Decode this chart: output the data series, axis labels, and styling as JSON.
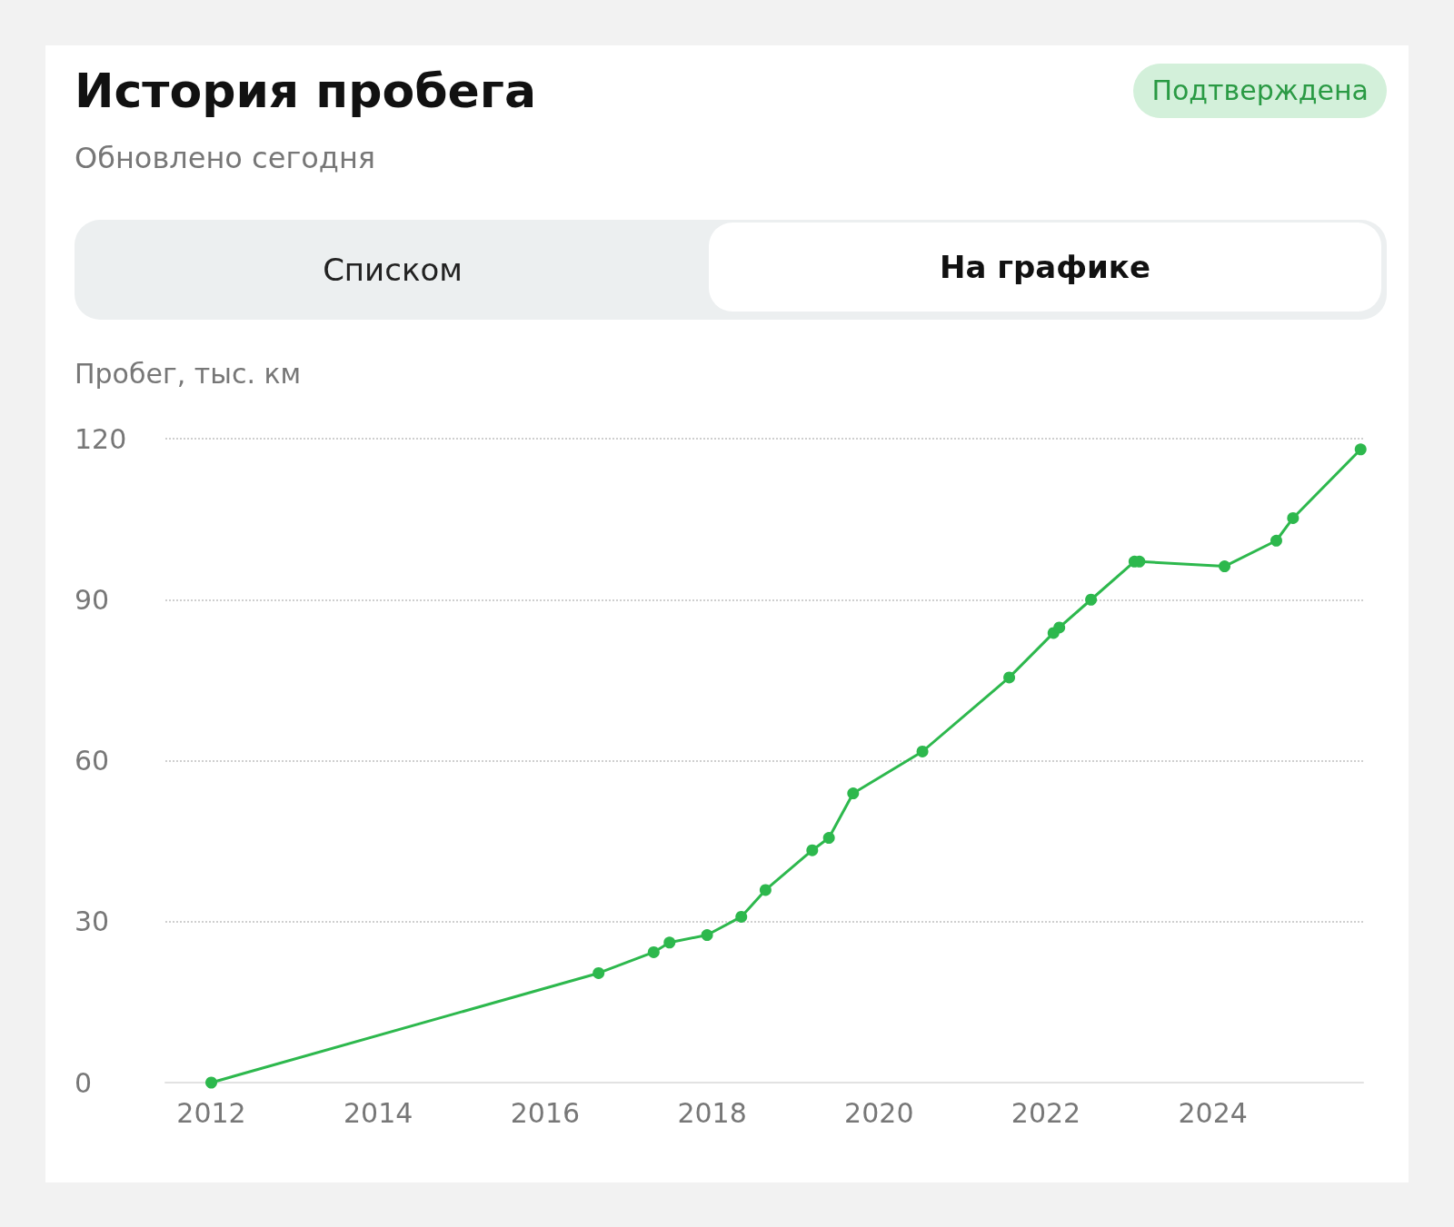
{
  "chart_data": {
    "type": "line",
    "title": "История пробега",
    "subtitle": "Обновлено сегодня",
    "ylabel": "Пробег, тыс. км",
    "annotations": [
      "Подтверждена",
      "Списком",
      "На графике"
    ],
    "series": [
      {
        "color": "#2db84d",
        "x": [
          2012.0,
          2016.64,
          2017.3,
          2017.49,
          2017.94,
          2018.35,
          2018.64,
          2019.2,
          2019.4,
          2019.69,
          2020.52,
          2021.56,
          2022.09,
          2022.16,
          2022.54,
          2023.06,
          2023.12,
          2024.14,
          2024.76,
          2024.96,
          2025.77
        ],
        "values": [
          0,
          20.4,
          24.3,
          26.1,
          27.5,
          30.9,
          35.9,
          43.3,
          45.6,
          53.9,
          61.7,
          75.5,
          83.8,
          84.8,
          90.0,
          97.1,
          97.1,
          96.2,
          101.0,
          105.2,
          118.0
        ]
      }
    ],
    "xlim": [
      2011.45,
      2025.8
    ],
    "xticks": [
      2012,
      2014,
      2016,
      2018,
      2020,
      2022,
      2024
    ],
    "ylim": [
      0,
      120
    ],
    "yticks": [
      0,
      30,
      60,
      90,
      120
    ],
    "grid": "y",
    "marker": "circle",
    "line_style": "solid"
  }
}
